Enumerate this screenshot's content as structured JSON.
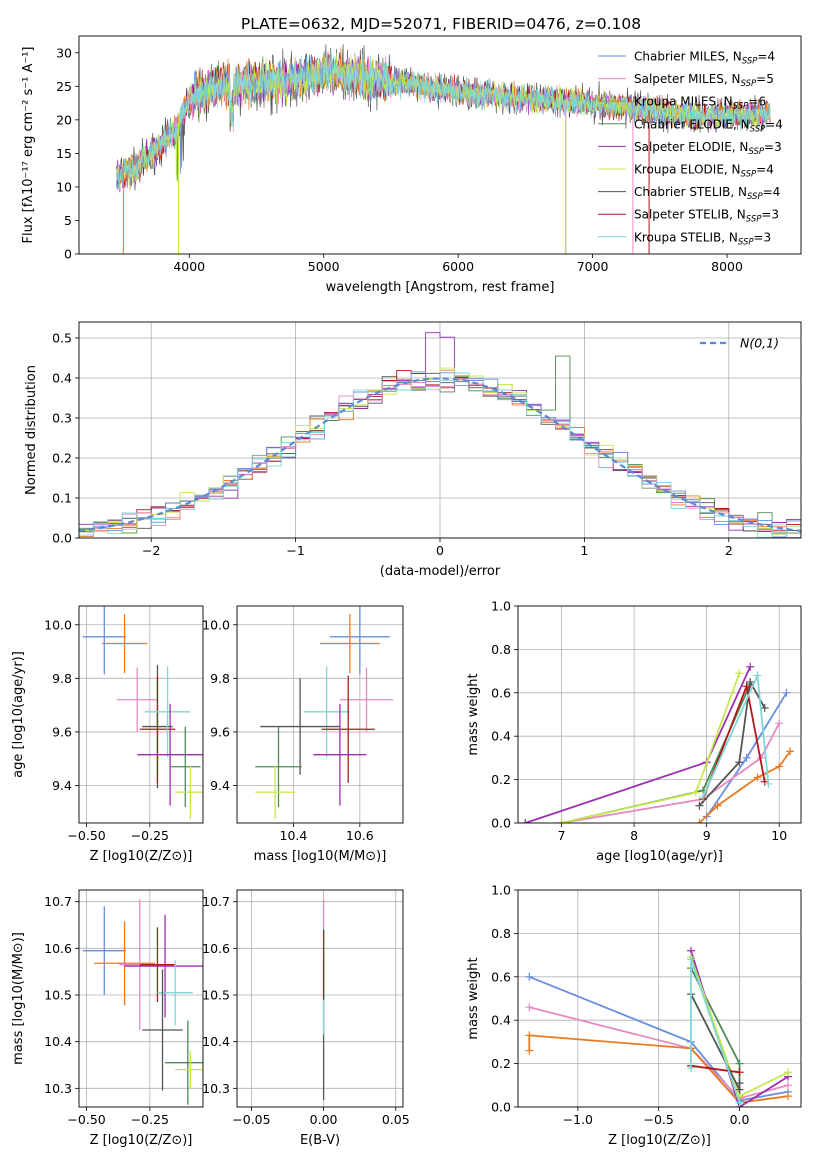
{
  "figure_title": "PLATE=0632, MJD=52071, FIBERID=0476, z=0.108",
  "colors": {
    "chabrier_miles": "#6a8fdc",
    "salpeter_miles": "#e88ac2",
    "kroupa_miles": "#e87a22",
    "chabrier_elodie": "#4f8a55",
    "salpeter_elodie": "#9b2fb0",
    "kroupa_elodie": "#c6e84f",
    "chabrier_stelib": "#555555",
    "salpeter_stelib": "#b01a1a",
    "kroupa_stelib": "#7fd6d6",
    "grid": "#b0b0b0",
    "normal_curve": "#5b8ad8"
  },
  "chart_data": [
    {
      "id": "spectrum",
      "type": "line",
      "title": "PLATE=0632, MJD=52071, FIBERID=0476, z=0.108",
      "xlabel": "wavelength [Angstrom, rest frame]",
      "ylabel": "Flux [fλ10⁻¹⁷ erg cm⁻² s⁻¹ A⁻¹]",
      "xlim": [
        3180,
        8550
      ],
      "ylim": [
        0,
        32.5
      ],
      "xticks": [
        4000,
        5000,
        6000,
        7000,
        8000
      ],
      "yticks": [
        0,
        5,
        10,
        15,
        20,
        25,
        30
      ],
      "grid": false,
      "legend_position": "top-right",
      "spectrum_range": [
        3460,
        8320
      ],
      "continuum_x": [
        3460,
        3600,
        3800,
        3900,
        4000,
        4200,
        4500,
        4700,
        4900,
        5100,
        5300,
        5600,
        5900,
        6200,
        6600,
        7000,
        7400,
        7800,
        8300
      ],
      "continuum_y": [
        11.5,
        12.8,
        16.5,
        18.5,
        23,
        25,
        25.5,
        25.8,
        26.5,
        27,
        26.2,
        25.5,
        24.5,
        23.8,
        23,
        22.5,
        21.5,
        20.5,
        21
      ],
      "dips": [
        {
          "series": 2,
          "x": 3510,
          "y": 0
        },
        {
          "series": 4,
          "x": 3920,
          "y": 0
        },
        {
          "series": 5,
          "x": 3920,
          "y": 0
        },
        {
          "series": 4,
          "x": 6800,
          "y": 0
        },
        {
          "series": 5,
          "x": 6800,
          "y": 0
        },
        {
          "series": 7,
          "x": 7420,
          "y": 0
        },
        {
          "series": 1,
          "x": 7300,
          "y": 0
        }
      ],
      "series": [
        {
          "name": "Chabrier MILES",
          "nssp": "4"
        },
        {
          "name": "Salpeter MILES",
          "nssp": "5"
        },
        {
          "name": "Kroupa MILES",
          "nssp": "6"
        },
        {
          "name": "Chabrier ELODIE",
          "nssp": "4"
        },
        {
          "name": "Salpeter ELODIE",
          "nssp": "3"
        },
        {
          "name": "Kroupa ELODIE",
          "nssp": "4"
        },
        {
          "name": "Chabrier STELIB",
          "nssp": "4"
        },
        {
          "name": "Salpeter STELIB",
          "nssp": "3"
        },
        {
          "name": "Kroupa STELIB",
          "nssp": "3"
        }
      ]
    },
    {
      "id": "residuals",
      "type": "step",
      "xlabel": "(data-model)/error",
      "ylabel": "Normed distribution",
      "xlim": [
        -2.5,
        2.5
      ],
      "ylim": [
        0,
        0.54
      ],
      "xticks": [
        -2,
        -1,
        0,
        1,
        2
      ],
      "yticks": [
        0.0,
        0.1,
        0.2,
        0.3,
        0.4,
        0.5
      ],
      "grid": true,
      "legend_position": "top-right",
      "legend": "N(0,1)",
      "bin_width": 0.1
    },
    {
      "id": "z_age",
      "type": "errorbar",
      "xlabel": "Z [log10(Z/Z⊙)]",
      "ylabel": "age  [log10(age/yr)]",
      "xlim": [
        -0.53,
        -0.04
      ],
      "ylim": [
        9.26,
        10.07
      ],
      "xticks": [
        -0.5,
        -0.25
      ],
      "yticks": [
        9.4,
        9.6,
        9.8,
        10.0
      ],
      "grid": true,
      "points": [
        {
          "series": 0,
          "x": -0.43,
          "xerr": 0.085,
          "y": 9.955,
          "yerr": 0.14
        },
        {
          "series": 2,
          "x": -0.35,
          "xerr": 0.09,
          "y": 9.93,
          "yerr": 0.11
        },
        {
          "series": 1,
          "x": -0.3,
          "xerr": 0.08,
          "y": 9.72,
          "yerr": 0.12
        },
        {
          "series": 6,
          "x": -0.22,
          "xerr": 0.06,
          "y": 9.62,
          "yerr": 0.23
        },
        {
          "series": 7,
          "x": -0.22,
          "xerr": 0.07,
          "y": 9.61,
          "yerr": 0.2
        },
        {
          "series": 8,
          "x": -0.18,
          "xerr": 0.09,
          "y": 9.675,
          "yerr": 0.17
        },
        {
          "series": 4,
          "x": -0.17,
          "xerr": 0.13,
          "y": 9.515,
          "yerr": 0.19
        },
        {
          "series": 3,
          "x": -0.11,
          "xerr": 0.06,
          "y": 9.47,
          "yerr": 0.15
        },
        {
          "series": 5,
          "x": -0.09,
          "xerr": 0.06,
          "y": 9.375,
          "yerr": 0.1
        }
      ]
    },
    {
      "id": "mass_age",
      "type": "errorbar",
      "xlabel": "mass [log10(M/M⊙)]",
      "ylabel": "",
      "xlim": [
        10.23,
        10.73
      ],
      "ylim": [
        9.26,
        10.07
      ],
      "xticks": [
        10.4,
        10.6
      ],
      "yticks": [
        9.4,
        9.6,
        9.8,
        10.0
      ],
      "grid": true,
      "points": [
        {
          "series": 0,
          "x": 10.6,
          "xerr": 0.09,
          "y": 9.955,
          "yerr": 0.14
        },
        {
          "series": 2,
          "x": 10.57,
          "xerr": 0.09,
          "y": 9.93,
          "yerr": 0.11
        },
        {
          "series": 1,
          "x": 10.62,
          "xerr": 0.08,
          "y": 9.72,
          "yerr": 0.12
        },
        {
          "series": 8,
          "x": 10.5,
          "xerr": 0.07,
          "y": 9.675,
          "yerr": 0.17
        },
        {
          "series": 6,
          "x": 10.42,
          "xerr": 0.12,
          "y": 9.62,
          "yerr": 0.18
        },
        {
          "series": 7,
          "x": 10.565,
          "xerr": 0.08,
          "y": 9.61,
          "yerr": 0.2
        },
        {
          "series": 4,
          "x": 10.54,
          "xerr": 0.08,
          "y": 9.515,
          "yerr": 0.19
        },
        {
          "series": 3,
          "x": 10.355,
          "xerr": 0.07,
          "y": 9.47,
          "yerr": 0.15
        },
        {
          "series": 5,
          "x": 10.345,
          "xerr": 0.06,
          "y": 9.375,
          "yerr": 0.1
        }
      ]
    },
    {
      "id": "age_weight",
      "type": "line",
      "xlabel": "age  [log10(age/yr)]",
      "ylabel": "mass weight",
      "xlim": [
        6.4,
        10.3
      ],
      "ylim": [
        0,
        1.0
      ],
      "xticks": [
        7,
        8,
        9,
        10
      ],
      "yticks": [
        0.0,
        0.2,
        0.4,
        0.6,
        0.8,
        1.0
      ],
      "grid": true,
      "lines": [
        {
          "series": 0,
          "points": [
            [
              9.0,
              0.03
            ],
            [
              9.55,
              0.3
            ],
            [
              10.1,
              0.6
            ]
          ]
        },
        {
          "series": 1,
          "points": [
            [
              7.0,
              0.0
            ],
            [
              8.95,
              0.11
            ],
            [
              9.75,
              0.3
            ],
            [
              10.0,
              0.46
            ]
          ]
        },
        {
          "series": 2,
          "points": [
            [
              8.9,
              0.0
            ],
            [
              9.15,
              0.08
            ],
            [
              9.7,
              0.21
            ],
            [
              10.0,
              0.26
            ],
            [
              10.15,
              0.33
            ]
          ]
        },
        {
          "series": 3,
          "points": [
            [
              7.0,
              0.0
            ],
            [
              8.95,
              0.15
            ],
            [
              9.6,
              0.64
            ]
          ]
        },
        {
          "series": 4,
          "points": [
            [
              6.5,
              0.0
            ],
            [
              9.0,
              0.28
            ],
            [
              9.6,
              0.72
            ]
          ]
        },
        {
          "series": 5,
          "points": [
            [
              7.0,
              0.0
            ],
            [
              8.85,
              0.14
            ],
            [
              9.45,
              0.69
            ]
          ]
        },
        {
          "series": 6,
          "points": [
            [
              8.9,
              0.08
            ],
            [
              9.45,
              0.28
            ],
            [
              9.6,
              0.65
            ],
            [
              9.8,
              0.53
            ]
          ]
        },
        {
          "series": 7,
          "points": [
            [
              8.95,
              0.11
            ],
            [
              9.55,
              0.63
            ],
            [
              9.8,
              0.19
            ]
          ]
        },
        {
          "series": 8,
          "points": [
            [
              8.95,
              0.12
            ],
            [
              9.7,
              0.68
            ],
            [
              9.85,
              0.18
            ]
          ]
        }
      ]
    },
    {
      "id": "z_mass",
      "type": "errorbar",
      "xlabel": "Z [log10(Z/Z⊙)]",
      "ylabel": "mass [log10(M/M⊙)]",
      "xlim": [
        -0.53,
        -0.04
      ],
      "ylim": [
        10.26,
        10.725
      ],
      "xticks": [
        -0.5,
        -0.25
      ],
      "yticks": [
        10.3,
        10.4,
        10.5,
        10.6,
        10.7
      ],
      "grid": true,
      "points": [
        {
          "series": 0,
          "x": -0.43,
          "xerr": 0.085,
          "y": 10.595,
          "yerr": 0.095
        },
        {
          "series": 2,
          "x": -0.35,
          "xerr": 0.12,
          "y": 10.568,
          "yerr": 0.09
        },
        {
          "series": 1,
          "x": -0.29,
          "xerr": 0.08,
          "y": 10.565,
          "yerr": 0.14
        },
        {
          "series": 4,
          "x": -0.19,
          "xerr": 0.16,
          "y": 10.562,
          "yerr": 0.11
        },
        {
          "series": 7,
          "x": -0.22,
          "xerr": 0.07,
          "y": 10.565,
          "yerr": 0.08
        },
        {
          "series": 8,
          "x": -0.15,
          "xerr": 0.07,
          "y": 10.505,
          "yerr": 0.07
        },
        {
          "series": 6,
          "x": -0.2,
          "xerr": 0.08,
          "y": 10.425,
          "yerr": 0.13
        },
        {
          "series": 3,
          "x": -0.1,
          "xerr": 0.09,
          "y": 10.355,
          "yerr": 0.09
        },
        {
          "series": 5,
          "x": -0.09,
          "xerr": 0.06,
          "y": 10.34,
          "yerr": 0.04
        }
      ]
    },
    {
      "id": "ebv_mass",
      "type": "errorbar",
      "xlabel": "E(B-V)",
      "ylabel": "",
      "xlim": [
        -0.06,
        0.055
      ],
      "ylim": [
        10.26,
        10.725
      ],
      "xticks": [
        -0.05,
        0.0,
        0.05
      ],
      "yticks": [
        10.3,
        10.4,
        10.5,
        10.6,
        10.7
      ],
      "grid": true,
      "points": [
        {
          "series": 6,
          "x": 0.0,
          "xerr": 0.0,
          "y": 10.425,
          "yerr": 0.15
        },
        {
          "series": 1,
          "x": 0.0,
          "xerr": 0.0,
          "y": 10.565,
          "yerr": 0.14
        },
        {
          "series": 8,
          "x": 0.0,
          "xerr": 0.0,
          "y": 10.505,
          "yerr": 0.09
        },
        {
          "series": 7,
          "x": 0.0,
          "xerr": 0.0,
          "y": 10.565,
          "yerr": 0.075
        }
      ]
    },
    {
      "id": "z_weight",
      "type": "line",
      "xlabel": "Z [log10(Z/Z⊙)]",
      "ylabel": "mass weight",
      "xlim": [
        -1.37,
        0.38
      ],
      "ylim": [
        0,
        1.0
      ],
      "xticks": [
        -1.0,
        -0.5,
        0.0
      ],
      "yticks": [
        0.0,
        0.2,
        0.4,
        0.6,
        0.8,
        1.0
      ],
      "grid": true,
      "lines": [
        {
          "series": 0,
          "points": [
            [
              -1.3,
              0.6
            ],
            [
              -0.3,
              0.3
            ],
            [
              0.0,
              0.03
            ],
            [
              0.3,
              0.07
            ]
          ]
        },
        {
          "series": 1,
          "points": [
            [
              -1.3,
              0.46
            ],
            [
              -0.3,
              0.27
            ],
            [
              0.0,
              0.04
            ],
            [
              0.3,
              0.1
            ]
          ]
        },
        {
          "series": 2,
          "points": [
            [
              -1.3,
              0.26
            ],
            [
              -1.3,
              0.33
            ],
            [
              -0.3,
              0.27
            ],
            [
              0.0,
              0.02
            ],
            [
              0.3,
              0.05
            ]
          ]
        },
        {
          "series": 3,
          "points": [
            [
              -0.3,
              0.64
            ],
            [
              0.0,
              0.2
            ],
            [
              0.0,
              0.0
            ]
          ]
        },
        {
          "series": 4,
          "points": [
            [
              -0.3,
              0.72
            ],
            [
              0.0,
              0.0
            ],
            [
              0.3,
              0.14
            ]
          ]
        },
        {
          "series": 5,
          "points": [
            [
              -0.3,
              0.69
            ],
            [
              0.0,
              0.05
            ],
            [
              0.3,
              0.16
            ]
          ]
        },
        {
          "series": 6,
          "points": [
            [
              -0.3,
              0.52
            ],
            [
              0.0,
              0.08
            ],
            [
              0.0,
              0.11
            ]
          ]
        },
        {
          "series": 7,
          "points": [
            [
              -0.3,
              0.19
            ],
            [
              0.0,
              0.16
            ]
          ]
        },
        {
          "series": 8,
          "points": [
            [
              -0.3,
              0.18
            ],
            [
              -0.3,
              0.68
            ],
            [
              0.0,
              0.02
            ]
          ]
        }
      ]
    }
  ]
}
